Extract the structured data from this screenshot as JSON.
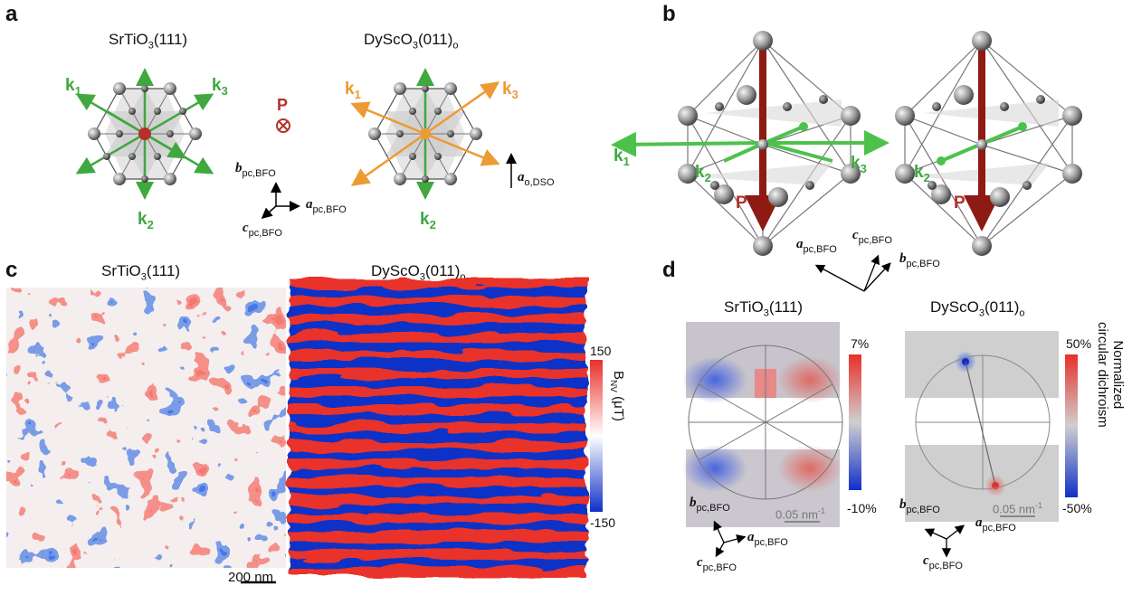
{
  "panels": {
    "a": {
      "label": "a",
      "sto_title": "SrTiO",
      "sto_sub": "3",
      "sto_suffix": "(111)",
      "dso_title": "DyScO",
      "dso_sub": "3",
      "dso_suffix": "(011)",
      "dso_sub2": "o",
      "k1": "k",
      "k2": "k",
      "k3": "k",
      "k1_sub": "1",
      "k2_sub": "2",
      "k3_sub": "3",
      "P": "P",
      "axis_a": "a",
      "axis_b": "b",
      "axis_c": "c",
      "axis_sub": "pc,BFO",
      "axis_ao": "a",
      "axis_ao_sub": "o,DSO"
    },
    "b": {
      "label": "b",
      "k1": "k",
      "k2": "k",
      "k3": "k",
      "k1_sub": "1",
      "k2_sub": "2",
      "k3_sub": "3",
      "P": "P",
      "axis_a": "a",
      "axis_b": "b",
      "axis_c": "c",
      "axis_sub": "pc,BFO"
    },
    "c": {
      "label": "c",
      "sto_title": "SrTiO",
      "sto_sub": "3",
      "sto_suffix": "(111)",
      "dso_title": "DyScO",
      "dso_sub": "3",
      "dso_suffix": "(011)",
      "dso_sub2": "o",
      "colorbar_max": "150",
      "colorbar_min": "-150",
      "colorbar_label": "B",
      "colorbar_label_sub": "NV",
      "colorbar_unit": " (μT)",
      "scalebar": "200 nm"
    },
    "d": {
      "label": "d",
      "sto_title": "SrTiO",
      "sto_sub": "3",
      "sto_suffix": "(111)",
      "dso_title": "DyScO",
      "dso_sub": "3",
      "dso_suffix": "(011)",
      "dso_sub2": "o",
      "cb1_max": "7%",
      "cb1_min": "-10%",
      "cb2_max": "50%",
      "cb2_min": "-50%",
      "cb2_label_1": "Normalized",
      "cb2_label_2": "circular dichroism",
      "scale": "0.05 nm",
      "scale_sup": "-1",
      "axis_a": "a",
      "axis_b": "b",
      "axis_c": "c",
      "axis_sub": "pc,BFO"
    }
  },
  "colors": {
    "green_k": "#3fa83f",
    "orange_k": "#ee9a32",
    "P_red": "#b5302a",
    "map_red": "#e8302a",
    "map_blue": "#1030c8"
  }
}
